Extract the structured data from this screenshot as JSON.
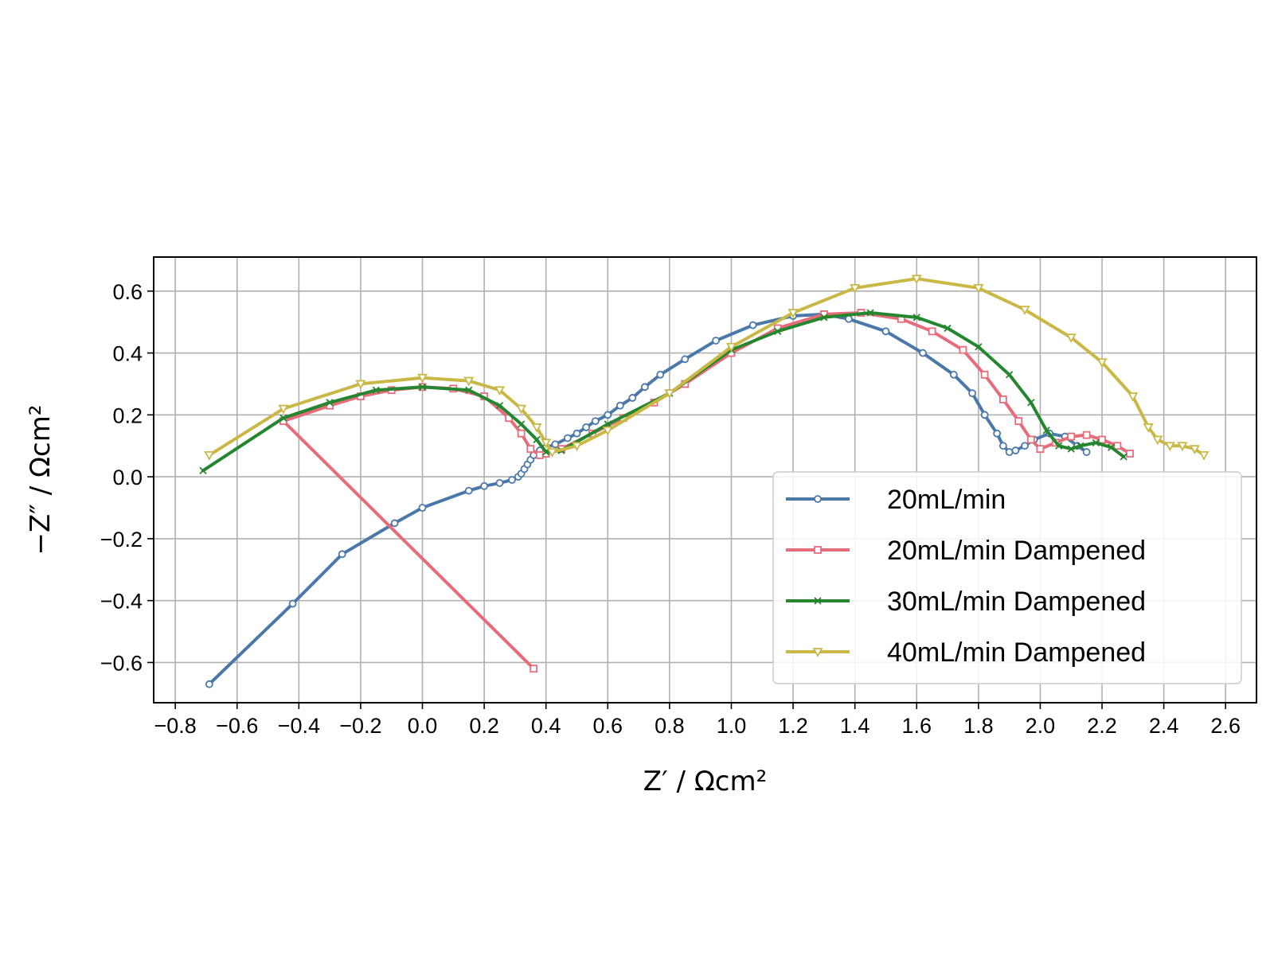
{
  "chart_data": {
    "type": "line",
    "xlabel": "Z′ / Ωcm²",
    "ylabel": "−Z″ / Ωcm²",
    "xlim": [
      -0.87,
      2.7
    ],
    "ylim": [
      -0.73,
      0.71
    ],
    "xticks": [
      -0.8,
      -0.6,
      -0.4,
      -0.2,
      0.0,
      0.2,
      0.4,
      0.6,
      0.8,
      1.0,
      1.2,
      1.4,
      1.6,
      1.8,
      2.0,
      2.2,
      2.4,
      2.6
    ],
    "xtick_labels": [
      "−0.8",
      "−0.6",
      "−0.4",
      "−0.2",
      "0.0",
      "0.2",
      "0.4",
      "0.6",
      "0.8",
      "1.0",
      "1.2",
      "1.4",
      "1.6",
      "1.8",
      "2.0",
      "2.2",
      "2.4",
      "2.6"
    ],
    "yticks": [
      -0.6,
      -0.4,
      -0.2,
      0.0,
      0.2,
      0.4,
      0.6
    ],
    "ytick_labels": [
      "−0.6",
      "−0.4",
      "−0.2",
      "0.0",
      "0.2",
      "0.4",
      "0.6"
    ],
    "grid": true,
    "legend_position": "lower-right",
    "series": [
      {
        "name": "20mL/min",
        "color": "#4a78a8",
        "marker": "circle",
        "points": [
          [
            -0.69,
            -0.67
          ],
          [
            -0.42,
            -0.41
          ],
          [
            -0.26,
            -0.25
          ],
          [
            -0.09,
            -0.15
          ],
          [
            0.0,
            -0.1
          ],
          [
            0.15,
            -0.045
          ],
          [
            0.2,
            -0.03
          ],
          [
            0.25,
            -0.02
          ],
          [
            0.29,
            -0.01
          ],
          [
            0.31,
            0.0
          ],
          [
            0.32,
            0.01
          ],
          [
            0.33,
            0.025
          ],
          [
            0.34,
            0.04
          ],
          [
            0.35,
            0.055
          ],
          [
            0.36,
            0.07
          ],
          [
            0.38,
            0.085
          ],
          [
            0.4,
            0.095
          ],
          [
            0.43,
            0.105
          ],
          [
            0.47,
            0.125
          ],
          [
            0.5,
            0.14
          ],
          [
            0.53,
            0.16
          ],
          [
            0.56,
            0.18
          ],
          [
            0.6,
            0.2
          ],
          [
            0.64,
            0.23
          ],
          [
            0.68,
            0.255
          ],
          [
            0.72,
            0.29
          ],
          [
            0.77,
            0.33
          ],
          [
            0.85,
            0.38
          ],
          [
            0.95,
            0.44
          ],
          [
            1.07,
            0.49
          ],
          [
            1.2,
            0.52
          ],
          [
            1.3,
            0.525
          ],
          [
            1.38,
            0.51
          ],
          [
            1.5,
            0.47
          ],
          [
            1.62,
            0.4
          ],
          [
            1.72,
            0.33
          ],
          [
            1.78,
            0.27
          ],
          [
            1.82,
            0.2
          ],
          [
            1.86,
            0.14
          ],
          [
            1.88,
            0.1
          ],
          [
            1.9,
            0.08
          ],
          [
            1.92,
            0.085
          ],
          [
            1.95,
            0.1
          ],
          [
            1.98,
            0.12
          ],
          [
            2.03,
            0.14
          ],
          [
            2.08,
            0.13
          ],
          [
            2.12,
            0.1
          ],
          [
            2.15,
            0.08
          ]
        ]
      },
      {
        "name": "20mL/min Dampened",
        "color": "#e86b7a",
        "marker": "square",
        "points": [
          [
            0.36,
            -0.62
          ],
          [
            -0.45,
            0.18
          ],
          [
            -0.3,
            0.23
          ],
          [
            -0.2,
            0.26
          ],
          [
            -0.1,
            0.28
          ],
          [
            0.0,
            0.29
          ],
          [
            0.1,
            0.285
          ],
          [
            0.2,
            0.26
          ],
          [
            0.28,
            0.19
          ],
          [
            0.32,
            0.14
          ],
          [
            0.35,
            0.09
          ],
          [
            0.38,
            0.07
          ],
          [
            0.4,
            0.075
          ],
          [
            0.45,
            0.09
          ],
          [
            0.55,
            0.14
          ],
          [
            0.65,
            0.19
          ],
          [
            0.75,
            0.24
          ],
          [
            0.85,
            0.3
          ],
          [
            1.0,
            0.4
          ],
          [
            1.15,
            0.48
          ],
          [
            1.3,
            0.525
          ],
          [
            1.42,
            0.53
          ],
          [
            1.55,
            0.51
          ],
          [
            1.65,
            0.47
          ],
          [
            1.75,
            0.41
          ],
          [
            1.82,
            0.33
          ],
          [
            1.88,
            0.25
          ],
          [
            1.93,
            0.18
          ],
          [
            1.97,
            0.12
          ],
          [
            2.0,
            0.09
          ],
          [
            2.05,
            0.11
          ],
          [
            2.1,
            0.13
          ],
          [
            2.15,
            0.135
          ],
          [
            2.2,
            0.12
          ],
          [
            2.25,
            0.1
          ],
          [
            2.29,
            0.075
          ]
        ]
      },
      {
        "name": "30mL/min Dampened",
        "color": "#24862e",
        "marker": "x",
        "points": [
          [
            -0.71,
            0.02
          ],
          [
            -0.45,
            0.19
          ],
          [
            -0.3,
            0.24
          ],
          [
            -0.15,
            0.28
          ],
          [
            0.0,
            0.29
          ],
          [
            0.15,
            0.28
          ],
          [
            0.25,
            0.23
          ],
          [
            0.32,
            0.17
          ],
          [
            0.37,
            0.12
          ],
          [
            0.4,
            0.08
          ],
          [
            0.45,
            0.085
          ],
          [
            0.6,
            0.17
          ],
          [
            0.8,
            0.27
          ],
          [
            1.0,
            0.41
          ],
          [
            1.15,
            0.47
          ],
          [
            1.3,
            0.515
          ],
          [
            1.45,
            0.53
          ],
          [
            1.6,
            0.515
          ],
          [
            1.7,
            0.48
          ],
          [
            1.8,
            0.42
          ],
          [
            1.9,
            0.33
          ],
          [
            1.97,
            0.24
          ],
          [
            2.02,
            0.15
          ],
          [
            2.06,
            0.1
          ],
          [
            2.1,
            0.09
          ],
          [
            2.13,
            0.1
          ],
          [
            2.18,
            0.11
          ],
          [
            2.23,
            0.095
          ],
          [
            2.27,
            0.065
          ]
        ]
      },
      {
        "name": "40mL/min Dampened",
        "color": "#c9b845",
        "marker": "triangle-down",
        "points": [
          [
            -0.69,
            0.07
          ],
          [
            -0.45,
            0.22
          ],
          [
            -0.2,
            0.3
          ],
          [
            0.0,
            0.32
          ],
          [
            0.15,
            0.31
          ],
          [
            0.25,
            0.28
          ],
          [
            0.32,
            0.22
          ],
          [
            0.37,
            0.16
          ],
          [
            0.4,
            0.11
          ],
          [
            0.42,
            0.08
          ],
          [
            0.5,
            0.1
          ],
          [
            0.6,
            0.15
          ],
          [
            0.8,
            0.27
          ],
          [
            1.0,
            0.42
          ],
          [
            1.2,
            0.53
          ],
          [
            1.4,
            0.61
          ],
          [
            1.6,
            0.64
          ],
          [
            1.8,
            0.61
          ],
          [
            1.95,
            0.54
          ],
          [
            2.1,
            0.45
          ],
          [
            2.2,
            0.37
          ],
          [
            2.3,
            0.26
          ],
          [
            2.35,
            0.16
          ],
          [
            2.38,
            0.12
          ],
          [
            2.42,
            0.1
          ],
          [
            2.46,
            0.1
          ],
          [
            2.5,
            0.09
          ],
          [
            2.53,
            0.07
          ]
        ]
      }
    ]
  }
}
